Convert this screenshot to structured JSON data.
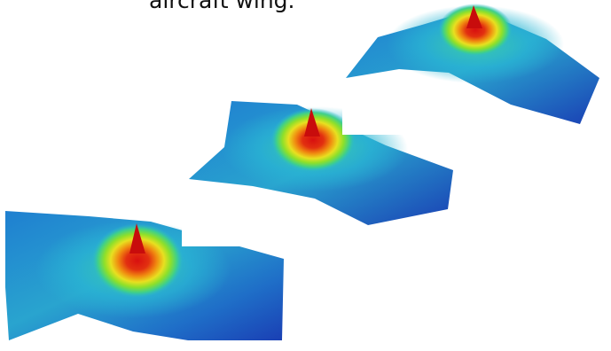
{
  "caption": {
    "text": "aircraft wing."
  },
  "surfaces": [
    {
      "id": "bottom-left",
      "description_name": "stress-surface-plot",
      "colormap": [
        "#1a3fb4",
        "#1f7fd0",
        "#29b6d4",
        "#3fd08a",
        "#8ee02a",
        "#e8e020",
        "#f08a10",
        "#d81010"
      ]
    },
    {
      "id": "middle",
      "description_name": "stress-surface-plot",
      "colormap": [
        "#1a3fb4",
        "#1f7fd0",
        "#29b6d4",
        "#3fd08a",
        "#8ee02a",
        "#e8e020",
        "#f08a10",
        "#d81010"
      ]
    },
    {
      "id": "top-right",
      "description_name": "stress-surface-plot",
      "colormap": [
        "#1a3fb4",
        "#1f7fd0",
        "#29b6d4",
        "#3fd08a",
        "#8ee02a",
        "#e8e020",
        "#f08a10",
        "#d81010"
      ]
    }
  ]
}
